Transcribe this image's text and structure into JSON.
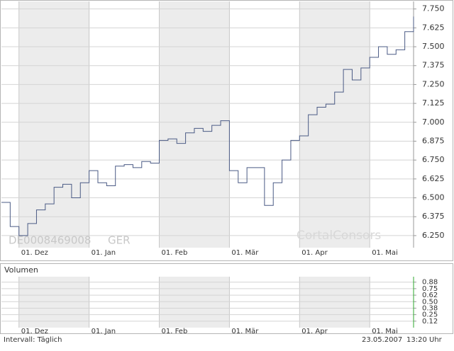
{
  "chart_data": [
    {
      "type": "line",
      "step": true,
      "watermark": "DE0008469008",
      "exchange": "GER",
      "brand": "CortalConsors",
      "categories": [
        null,
        null,
        "01. Dez",
        null,
        null,
        null,
        null,
        null,
        null,
        null,
        "01. Jan",
        null,
        null,
        null,
        null,
        null,
        null,
        null,
        "01. Feb",
        null,
        null,
        null,
        null,
        null,
        null,
        null,
        "01. Mär",
        null,
        null,
        null,
        null,
        null,
        null,
        null,
        "01. Apr",
        null,
        null,
        null,
        null,
        null,
        null,
        null,
        "01. Mai",
        null,
        null,
        null,
        null,
        null
      ],
      "series": [
        {
          "color": "#4b5b85",
          "values": [
            6.47,
            6.31,
            6.25,
            6.33,
            6.42,
            6.46,
            6.57,
            6.59,
            6.5,
            6.6,
            6.68,
            6.6,
            6.58,
            6.71,
            6.72,
            6.7,
            6.74,
            6.73,
            6.88,
            6.89,
            6.86,
            6.93,
            6.96,
            6.94,
            6.98,
            7.01,
            6.68,
            6.6,
            6.7,
            6.7,
            6.45,
            6.6,
            6.75,
            6.88,
            6.91,
            7.05,
            7.1,
            7.12,
            7.2,
            7.35,
            7.28,
            7.36,
            7.43,
            7.5,
            7.45,
            7.48,
            7.6,
            7.7
          ]
        }
      ],
      "ylim": [
        6.17,
        7.8
      ],
      "yticks": [
        {
          "value": 6.25,
          "label": "6.250"
        },
        {
          "value": 6.375,
          "label": "6.375"
        },
        {
          "value": 6.5,
          "label": "6.500"
        },
        {
          "value": 6.625,
          "label": "6.625"
        },
        {
          "value": 6.75,
          "label": "6.750"
        },
        {
          "value": 6.875,
          "label": "6.875"
        },
        {
          "value": 7.0,
          "label": "7.000"
        },
        {
          "value": 7.125,
          "label": "7.125"
        },
        {
          "value": 7.25,
          "label": "7.250"
        },
        {
          "value": 7.375,
          "label": "7.375"
        },
        {
          "value": 7.5,
          "label": "7.500"
        },
        {
          "value": 7.625,
          "label": "7.625"
        },
        {
          "value": 7.75,
          "label": "7.750"
        }
      ],
      "grid": true
    },
    {
      "type": "volume",
      "title": "Volumen",
      "ylim": [
        0,
        0.98
      ],
      "yticks": [
        {
          "value": 0.125,
          "label": "0.12"
        },
        0.25,
        {
          "value": 0.375,
          "label": "0.38"
        },
        {
          "value": 0.5,
          "label": "0.50"
        },
        {
          "value": 0.625,
          "label": "0.62"
        },
        0.75,
        {
          "value": 0.875,
          "label": "0.88"
        }
      ],
      "grid": true
    }
  ],
  "footer": {
    "interval": "Intervall: Täglich",
    "date": "23.05.2007",
    "time": "13:20 Uhr"
  }
}
